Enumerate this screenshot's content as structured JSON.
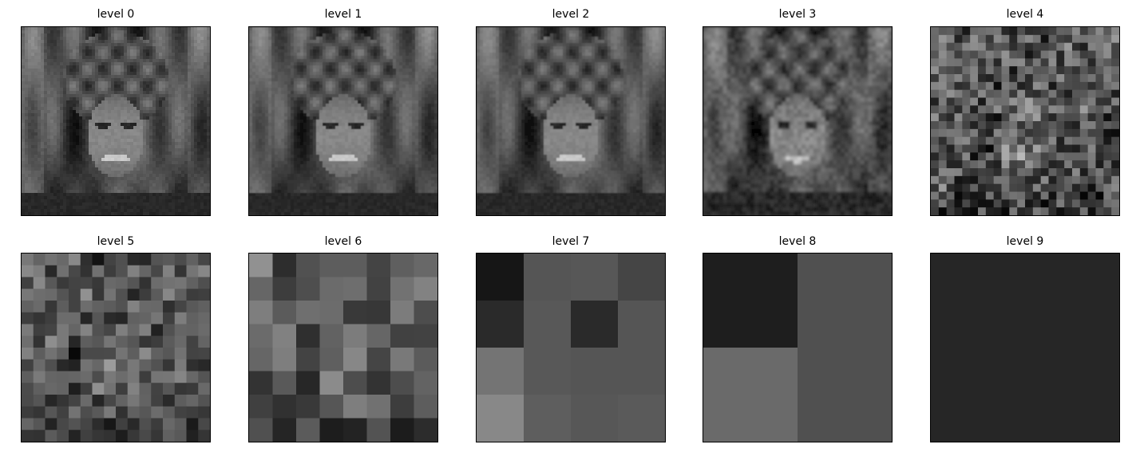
{
  "figure": {
    "panels": [
      {
        "title": "level 0",
        "kind": "portrait",
        "pixelation": "none"
      },
      {
        "title": "level 1",
        "kind": "portrait",
        "pixelation": "none"
      },
      {
        "title": "level 2",
        "kind": "portrait",
        "pixelation": "slight"
      },
      {
        "title": "level 3",
        "kind": "portrait",
        "pixelation": "moderate"
      },
      {
        "title": "level 4",
        "kind": "mosaic",
        "grid": 24
      },
      {
        "title": "level 5",
        "kind": "mosaic",
        "grid": 16
      },
      {
        "title": "level 6",
        "kind": "mosaic",
        "grid": 8
      },
      {
        "title": "level 7",
        "kind": "blocks",
        "grid": 4,
        "shades": [
          [
            "#161616",
            "#555555",
            "#575757",
            "#454545"
          ],
          [
            "#2a2a2a",
            "#585858",
            "#2a2a2a",
            "#555555"
          ],
          [
            "#747474",
            "#585858",
            "#555555",
            "#555555"
          ],
          [
            "#888888",
            "#5e5e5e",
            "#575757",
            "#5a5a5a"
          ]
        ]
      },
      {
        "title": "level 8",
        "kind": "blocks",
        "grid": 2,
        "shades": [
          [
            "#1e1e1e",
            "#505050"
          ],
          [
            "#6a6a6a",
            "#505050"
          ]
        ]
      },
      {
        "title": "level 9",
        "kind": "blocks",
        "grid": 1,
        "shades": [
          [
            "#262626"
          ]
        ]
      }
    ]
  }
}
